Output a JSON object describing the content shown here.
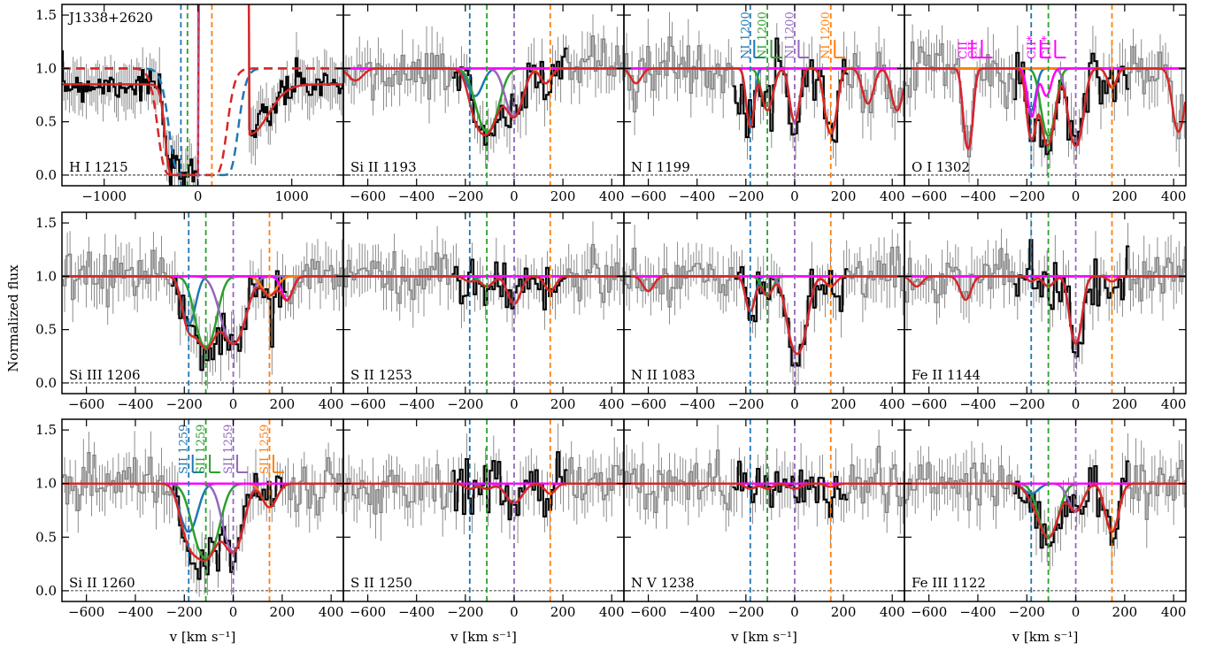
{
  "figure": {
    "target": "J1338+2620",
    "ylabel": "Normalized flux",
    "xlabel": "v [km s⁻¹]"
  },
  "colors": {
    "data_black": "#000000",
    "data_gray": "#808080",
    "c1": "#1f77b4",
    "c2": "#2ca02c",
    "c3": "#9467bd",
    "c4": "#ff7f0e",
    "total": "#d62728",
    "unrelated": "#ff00ff"
  },
  "chart_data": {
    "type": "line",
    "layout": "grid 3x4 (4 in top row, 4 in middle, 4 in bottom)",
    "components_kms": [
      -182,
      -112,
      0,
      148
    ],
    "ylim": [
      -0.1,
      1.6
    ],
    "yticks": [
      0.0,
      0.5,
      1.0,
      1.5
    ],
    "xlim_metal": [
      -700,
      450
    ],
    "xticks_metal": [
      -600,
      -400,
      -200,
      0,
      200,
      400
    ],
    "xlim_hi": [
      -1450,
      1550
    ],
    "xticks_hi": [
      -1000,
      0,
      1000
    ],
    "panels": [
      {
        "ion": "H I 1215",
        "kind": "HI",
        "components": [
          {
            "v": -130,
            "b": 120,
            "tau": 25
          },
          {
            "v": 550,
            "b": 280,
            "tau": 0.9
          }
        ]
      },
      {
        "ion": "Si II 1193",
        "components": [
          {
            "v": -160,
            "b": 40,
            "tau": 0.3
          },
          {
            "v": -110,
            "b": 55,
            "tau": 0.9
          },
          {
            "v": 0,
            "b": 45,
            "tau": 0.6
          },
          {
            "v": 130,
            "b": 30,
            "tau": 0.15
          }
        ],
        "extra": [
          {
            "v": -650,
            "b": 40,
            "tau": 0.12
          }
        ]
      },
      {
        "ion": "N I 1199",
        "components": [
          {
            "v": -182,
            "b": 20,
            "tau": 0.8
          },
          {
            "v": -112,
            "b": 30,
            "tau": 0.5
          },
          {
            "v": 0,
            "b": 25,
            "tau": 0.7
          },
          {
            "v": 148,
            "b": 30,
            "tau": 0.95
          }
        ],
        "extra": [
          {
            "v": 300,
            "b": 30,
            "tau": 0.4
          },
          {
            "v": 420,
            "b": 30,
            "tau": 0.5
          },
          {
            "v": -650,
            "b": 30,
            "tau": 0.15
          }
        ],
        "comp_labels": [
          "NI 1200",
          "NI 1200",
          "NI 1200",
          "NI 1200"
        ]
      },
      {
        "ion": "O I 1302",
        "components": [
          {
            "v": -182,
            "b": 25,
            "tau": 0.5
          },
          {
            "v": -112,
            "b": 35,
            "tau": 1.0
          },
          {
            "v": 0,
            "b": 35,
            "tau": 1.3
          },
          {
            "v": 148,
            "b": 25,
            "tau": 0.2
          }
        ],
        "unrelated": [
          {
            "v": -440,
            "b": 22,
            "tau": 1.4
          },
          {
            "v": -180,
            "b": 22,
            "tau": 0.6
          },
          {
            "v": -120,
            "b": 25,
            "tau": 0.3
          }
        ],
        "extra": [
          {
            "v": 420,
            "b": 30,
            "tau": 0.9
          }
        ],
        "comp_labels": [
          "CII",
          "CII",
          "CII*",
          "CII*"
        ]
      },
      {
        "ion": "Si III 1206",
        "components": [
          {
            "v": -182,
            "b": 35,
            "tau": 0.6
          },
          {
            "v": -112,
            "b": 50,
            "tau": 1.1
          },
          {
            "v": 0,
            "b": 60,
            "tau": 1.0
          },
          {
            "v": 148,
            "b": 40,
            "tau": 0.2
          }
        ],
        "unrelated": [
          {
            "v": 220,
            "b": 30,
            "tau": 0.25
          }
        ]
      },
      {
        "ion": "S II 1253",
        "components": [
          {
            "v": -182,
            "b": 30,
            "tau": 0.05
          },
          {
            "v": -112,
            "b": 35,
            "tau": 0.1
          },
          {
            "v": 0,
            "b": 35,
            "tau": 0.3
          },
          {
            "v": 148,
            "b": 30,
            "tau": 0.15
          }
        ]
      },
      {
        "ion": "N II 1083",
        "components": [
          {
            "v": -182,
            "b": 25,
            "tau": 0.4
          },
          {
            "v": -112,
            "b": 30,
            "tau": 0.2
          },
          {
            "v": 10,
            "b": 45,
            "tau": 1.3
          },
          {
            "v": 148,
            "b": 30,
            "tau": 0.1
          }
        ],
        "extra": [
          {
            "v": -600,
            "b": 30,
            "tau": 0.15
          }
        ]
      },
      {
        "ion": "Fe II 1144",
        "components": [
          {
            "v": -182,
            "b": 20,
            "tau": 0.05
          },
          {
            "v": -112,
            "b": 30,
            "tau": 0.1
          },
          {
            "v": 0,
            "b": 30,
            "tau": 1.0
          },
          {
            "v": 148,
            "b": 25,
            "tau": 0.05
          }
        ],
        "extra": [
          {
            "v": -450,
            "b": 30,
            "tau": 0.25
          },
          {
            "v": -650,
            "b": 30,
            "tau": 0.1
          }
        ]
      },
      {
        "ion": "Si II 1260",
        "components": [
          {
            "v": -182,
            "b": 45,
            "tau": 0.6
          },
          {
            "v": -112,
            "b": 60,
            "tau": 1.2
          },
          {
            "v": 0,
            "b": 50,
            "tau": 1.0
          },
          {
            "v": 148,
            "b": 40,
            "tau": 0.25
          }
        ],
        "comp_labels": [
          "SII 1259",
          "SII 1259",
          "SII 1259",
          "SII 1259"
        ]
      },
      {
        "ion": "S II 1250",
        "components": [
          {
            "v": -182,
            "b": 30,
            "tau": 0.05
          },
          {
            "v": -112,
            "b": 35,
            "tau": 0.05
          },
          {
            "v": 0,
            "b": 45,
            "tau": 0.2
          },
          {
            "v": 148,
            "b": 30,
            "tau": 0.1
          }
        ]
      },
      {
        "ion": "N V 1238",
        "components": [
          {
            "v": -182,
            "b": 30,
            "tau": 0.05
          },
          {
            "v": -112,
            "b": 30,
            "tau": 0.05
          },
          {
            "v": 0,
            "b": 35,
            "tau": 0.05
          },
          {
            "v": 148,
            "b": 30,
            "tau": 0.03
          }
        ]
      },
      {
        "ion": "Fe III 1122",
        "components": [
          {
            "v": -182,
            "b": 40,
            "tau": 0.1
          },
          {
            "v": -112,
            "b": 50,
            "tau": 0.7
          },
          {
            "v": 0,
            "b": 40,
            "tau": 0.3
          },
          {
            "v": 148,
            "b": 35,
            "tau": 0.6
          }
        ]
      }
    ]
  }
}
